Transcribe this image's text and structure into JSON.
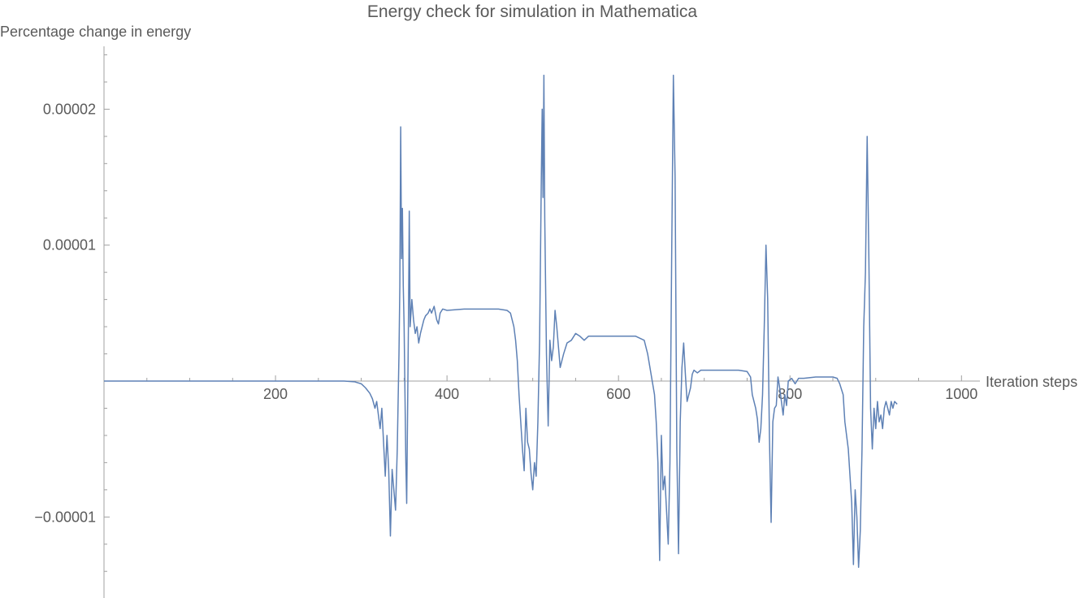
{
  "chart_data": {
    "type": "line",
    "title": "Energy check for simulation in Mathematica",
    "xlabel": "Iteration steps",
    "ylabel": "Percentage change in energy",
    "xlim": [
      0,
      1020
    ],
    "ylim": [
      -1.58e-05,
      2.45e-05
    ],
    "x_ticks": [
      {
        "value": 200,
        "label": "200"
      },
      {
        "value": 400,
        "label": "400"
      },
      {
        "value": 600,
        "label": "600"
      },
      {
        "value": 800,
        "label": "800"
      },
      {
        "value": 1000,
        "label": "1000"
      }
    ],
    "y_ticks": [
      {
        "value": 2e-05,
        "label": "0.00002"
      },
      {
        "value": 1e-05,
        "label": "0.00001"
      },
      {
        "value": -1e-05,
        "label": "−0.00001"
      }
    ],
    "x_minor_step": 50,
    "y_minor_step": 2e-06,
    "grid": false,
    "series": [
      {
        "color": "#5e81b5",
        "points": [
          [
            0,
            0
          ],
          [
            100,
            0
          ],
          [
            200,
            0
          ],
          [
            280,
            0
          ],
          [
            292,
            -5e-08
          ],
          [
            300,
            -2e-07
          ],
          [
            305,
            -5e-07
          ],
          [
            310,
            -9e-07
          ],
          [
            313,
            -1.3e-06
          ],
          [
            316,
            -2e-06
          ],
          [
            318,
            -1.5e-06
          ],
          [
            320,
            -2.5e-06
          ],
          [
            322,
            -3.5e-06
          ],
          [
            324,
            -2e-06
          ],
          [
            326,
            -4.5e-06
          ],
          [
            328,
            -7e-06
          ],
          [
            330,
            -4e-06
          ],
          [
            332,
            -6.5e-06
          ],
          [
            334,
            -1.14e-05
          ],
          [
            336,
            -6.5e-06
          ],
          [
            338,
            -8e-06
          ],
          [
            340,
            -9.5e-06
          ],
          [
            342,
            -5e-06
          ],
          [
            344,
            2e-06
          ],
          [
            345,
            7e-06
          ],
          [
            346,
            1.87e-05
          ],
          [
            347,
            9e-06
          ],
          [
            348,
            1.27e-05
          ],
          [
            349,
            7e-06
          ],
          [
            350,
            4e-06
          ],
          [
            352,
            -6e-06
          ],
          [
            353,
            -9e-06
          ],
          [
            355,
            4e-06
          ],
          [
            356,
            1.25e-05
          ],
          [
            357,
            4e-06
          ],
          [
            359,
            6e-06
          ],
          [
            361,
            4.5e-06
          ],
          [
            363,
            3.5e-06
          ],
          [
            365,
            4e-06
          ],
          [
            367,
            2.8e-06
          ],
          [
            369,
            3.5e-06
          ],
          [
            371,
            4e-06
          ],
          [
            373,
            4.5e-06
          ],
          [
            375,
            4.8e-06
          ],
          [
            378,
            5e-06
          ],
          [
            380,
            5.3e-06
          ],
          [
            382,
            5e-06
          ],
          [
            385,
            5.5e-06
          ],
          [
            388,
            4.5e-06
          ],
          [
            390,
            4.2e-06
          ],
          [
            392,
            5e-06
          ],
          [
            395,
            5.3e-06
          ],
          [
            400,
            5.2e-06
          ],
          [
            420,
            5.3e-06
          ],
          [
            440,
            5.3e-06
          ],
          [
            460,
            5.3e-06
          ],
          [
            470,
            5.2e-06
          ],
          [
            474,
            5e-06
          ],
          [
            476,
            4.5e-06
          ],
          [
            478,
            4e-06
          ],
          [
            480,
            3e-06
          ],
          [
            482,
            1.5e-06
          ],
          [
            484,
            -1e-06
          ],
          [
            486,
            -3e-06
          ],
          [
            488,
            -5e-06
          ],
          [
            490,
            -6.6e-06
          ],
          [
            492,
            -2e-06
          ],
          [
            494,
            -4.5e-06
          ],
          [
            496,
            -5e-06
          ],
          [
            498,
            -6.8e-06
          ],
          [
            500,
            -8e-06
          ],
          [
            502,
            -6e-06
          ],
          [
            504,
            -7e-06
          ],
          [
            506,
            -3e-06
          ],
          [
            508,
            3e-06
          ],
          [
            510,
            1.5e-05
          ],
          [
            511,
            2e-05
          ],
          [
            512,
            1.35e-05
          ],
          [
            513,
            2.25e-05
          ],
          [
            514,
            1.2e-05
          ],
          [
            516,
            2e-06
          ],
          [
            518,
            -3.3e-06
          ],
          [
            520,
            3e-06
          ],
          [
            522,
            1.5e-06
          ],
          [
            524,
            2.5e-06
          ],
          [
            526,
            5.2e-06
          ],
          [
            528,
            4e-06
          ],
          [
            530,
            2.5e-06
          ],
          [
            532,
            1e-06
          ],
          [
            534,
            1.5e-06
          ],
          [
            536,
            2e-06
          ],
          [
            540,
            2.8e-06
          ],
          [
            545,
            3e-06
          ],
          [
            550,
            3.5e-06
          ],
          [
            555,
            3.3e-06
          ],
          [
            560,
            3e-06
          ],
          [
            565,
            3.3e-06
          ],
          [
            580,
            3.3e-06
          ],
          [
            600,
            3.3e-06
          ],
          [
            620,
            3.3e-06
          ],
          [
            630,
            3e-06
          ],
          [
            634,
            2e-06
          ],
          [
            638,
            5e-07
          ],
          [
            642,
            -1e-06
          ],
          [
            644,
            -3e-06
          ],
          [
            646,
            -6e-06
          ],
          [
            648,
            -1.32e-05
          ],
          [
            650,
            -4e-06
          ],
          [
            652,
            -8e-06
          ],
          [
            654,
            -7e-06
          ],
          [
            656,
            -9.5e-06
          ],
          [
            658,
            -1.2e-05
          ],
          [
            660,
            -6e-06
          ],
          [
            662,
            9e-06
          ],
          [
            664,
            2.25e-05
          ],
          [
            666,
            1.5e-05
          ],
          [
            668,
            -5e-06
          ],
          [
            670,
            -1.27e-05
          ],
          [
            672,
            -3e-06
          ],
          [
            674,
            1e-06
          ],
          [
            676,
            2.8e-06
          ],
          [
            678,
            5e-07
          ],
          [
            680,
            -1.5e-06
          ],
          [
            682,
            -1e-06
          ],
          [
            684,
            -5e-07
          ],
          [
            686,
            5e-07
          ],
          [
            688,
            8e-07
          ],
          [
            692,
            6e-07
          ],
          [
            696,
            8e-07
          ],
          [
            700,
            8e-07
          ],
          [
            720,
            8e-07
          ],
          [
            740,
            8e-07
          ],
          [
            750,
            7e-07
          ],
          [
            754,
            3e-07
          ],
          [
            756,
            -1e-06
          ],
          [
            758,
            -1.5e-06
          ],
          [
            760,
            -2e-06
          ],
          [
            762,
            -2.8e-06
          ],
          [
            764,
            -4.5e-06
          ],
          [
            766,
            -3.5e-06
          ],
          [
            768,
            -1e-06
          ],
          [
            770,
            4e-06
          ],
          [
            772,
            1e-05
          ],
          [
            774,
            6e-06
          ],
          [
            776,
            -4e-06
          ],
          [
            778,
            -1.04e-05
          ],
          [
            780,
            -3e-06
          ],
          [
            782,
            -2e-06
          ],
          [
            784,
            -1.8e-06
          ],
          [
            786,
            3e-07
          ],
          [
            788,
            -5e-07
          ],
          [
            790,
            -1.5e-06
          ],
          [
            792,
            -2.5e-06
          ],
          [
            794,
            -1e-06
          ],
          [
            796,
            -1.8e-06
          ],
          [
            798,
            0
          ],
          [
            802,
            2e-07
          ],
          [
            806,
            -2e-07
          ],
          [
            810,
            2e-07
          ],
          [
            816,
            2e-07
          ],
          [
            830,
            3e-07
          ],
          [
            850,
            3e-07
          ],
          [
            855,
            2e-07
          ],
          [
            858,
            -2e-07
          ],
          [
            862,
            -1e-06
          ],
          [
            864,
            -3e-06
          ],
          [
            866,
            -4e-06
          ],
          [
            868,
            -5e-06
          ],
          [
            870,
            -7e-06
          ],
          [
            872,
            -9e-06
          ],
          [
            874,
            -1.35e-05
          ],
          [
            876,
            -8e-06
          ],
          [
            878,
            -1e-05
          ],
          [
            880,
            -1.37e-05
          ],
          [
            882,
            -1.1e-05
          ],
          [
            884,
            -5e-06
          ],
          [
            886,
            4e-06
          ],
          [
            888,
            8e-06
          ],
          [
            890,
            1.8e-05
          ],
          [
            892,
            9e-06
          ],
          [
            894,
            -2e-06
          ],
          [
            896,
            -5e-06
          ],
          [
            898,
            -2e-06
          ],
          [
            900,
            -3.5e-06
          ],
          [
            902,
            -1.5e-06
          ],
          [
            904,
            -3e-06
          ],
          [
            906,
            -2.5e-06
          ],
          [
            908,
            -3.5e-06
          ],
          [
            910,
            -2e-06
          ],
          [
            912,
            -1.5e-06
          ],
          [
            914,
            -2e-06
          ],
          [
            916,
            -2.5e-06
          ],
          [
            918,
            -1.5e-06
          ],
          [
            920,
            -2e-06
          ],
          [
            922,
            -1.5e-06
          ],
          [
            925,
            -1.7e-06
          ]
        ]
      }
    ]
  }
}
